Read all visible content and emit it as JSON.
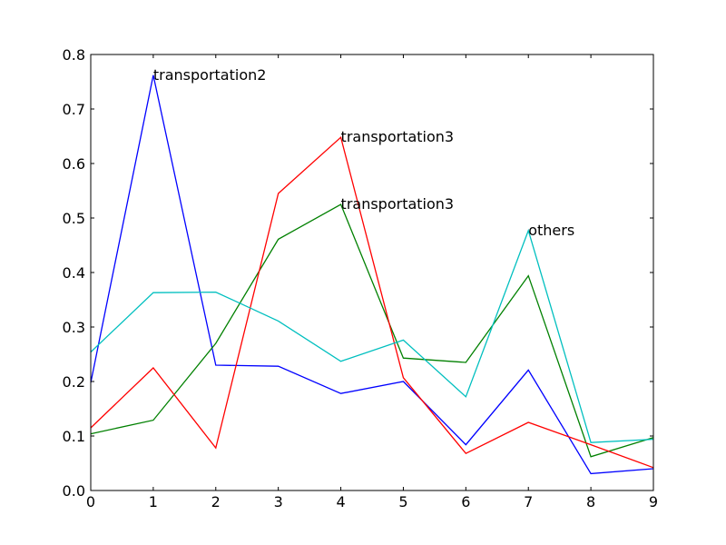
{
  "chart_data": {
    "type": "line",
    "x": [
      0,
      1,
      2,
      3,
      4,
      5,
      6,
      7,
      8,
      9
    ],
    "xlim": [
      0,
      9
    ],
    "ylim": [
      0,
      0.8
    ],
    "xticks": [
      "0",
      "1",
      "2",
      "3",
      "4",
      "5",
      "6",
      "7",
      "8",
      "9"
    ],
    "yticks": [
      "0.0",
      "0.1",
      "0.2",
      "0.3",
      "0.4",
      "0.5",
      "0.6",
      "0.7",
      "0.8"
    ],
    "grid": false,
    "series": [
      {
        "color": "#0000ff",
        "values": [
          0.198,
          0.762,
          0.23,
          0.228,
          0.178,
          0.2,
          0.084,
          0.221,
          0.031,
          0.04
        ]
      },
      {
        "color": "#008000",
        "values": [
          0.104,
          0.129,
          0.27,
          0.461,
          0.525,
          0.243,
          0.235,
          0.394,
          0.062,
          0.097
        ]
      },
      {
        "color": "#ff0000",
        "values": [
          0.115,
          0.225,
          0.078,
          0.545,
          0.648,
          0.207,
          0.068,
          0.125,
          0.084,
          0.042
        ]
      },
      {
        "color": "#00bfbf",
        "values": [
          0.254,
          0.363,
          0.364,
          0.311,
          0.237,
          0.276,
          0.172,
          0.477,
          0.088,
          0.094
        ]
      }
    ],
    "annotations": [
      {
        "text": "transportation2",
        "x": 1,
        "y": 0.762
      },
      {
        "text": "transportation3",
        "x": 4,
        "y": 0.648
      },
      {
        "text": "transportation3",
        "x": 4,
        "y": 0.525
      },
      {
        "text": "others",
        "x": 7,
        "y": 0.477
      }
    ]
  }
}
